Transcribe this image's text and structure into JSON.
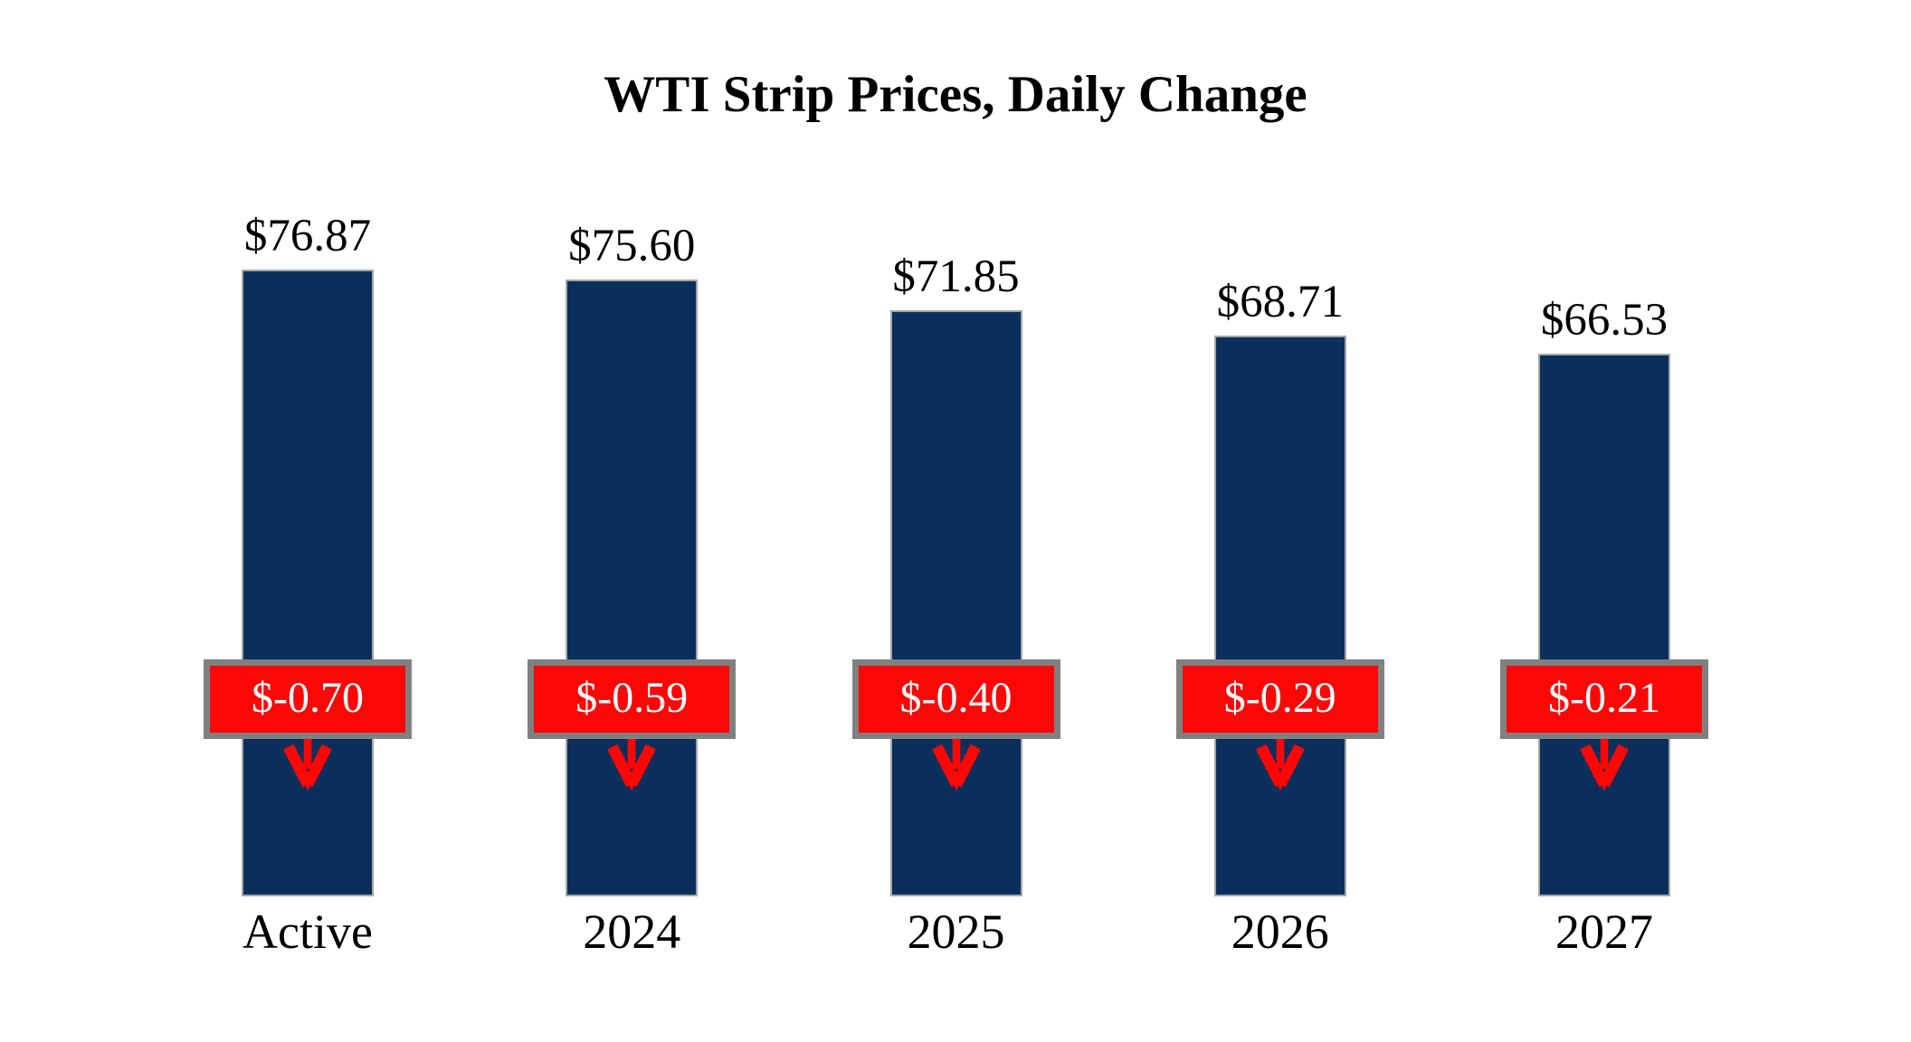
{
  "title": "WTI Strip Prices, Daily Change",
  "chart_data": {
    "type": "bar",
    "title": "WTI Strip Prices, Daily Change",
    "categories": [
      "Active",
      "2024",
      "2025",
      "2026",
      "2027"
    ],
    "series": [
      {
        "name": "Strip Price",
        "values": [
          76.87,
          75.6,
          71.85,
          68.71,
          66.53
        ]
      },
      {
        "name": "Daily Change",
        "values": [
          -0.7,
          -0.59,
          -0.4,
          -0.29,
          -0.21
        ]
      }
    ],
    "value_labels": [
      "$76.87",
      "$75.60",
      "$71.85",
      "$68.71",
      "$66.53"
    ],
    "change_labels": [
      "$-0.70",
      "$-0.59",
      "$-0.40",
      "$-0.29",
      "$-0.21"
    ],
    "xlabel": "",
    "ylabel": "",
    "ylim": [
      0,
      76.87
    ],
    "axes_hidden": true,
    "grid": false,
    "legend_position": "none"
  },
  "colors": {
    "bar_fill": "#0b2f5c",
    "bar_border": "#a6a6a6",
    "change_fill": "#fe0606",
    "change_border": "#808080",
    "change_text": "#ffffff",
    "arrow": "#fe0606",
    "text": "#000000",
    "background": "#ffffff"
  }
}
